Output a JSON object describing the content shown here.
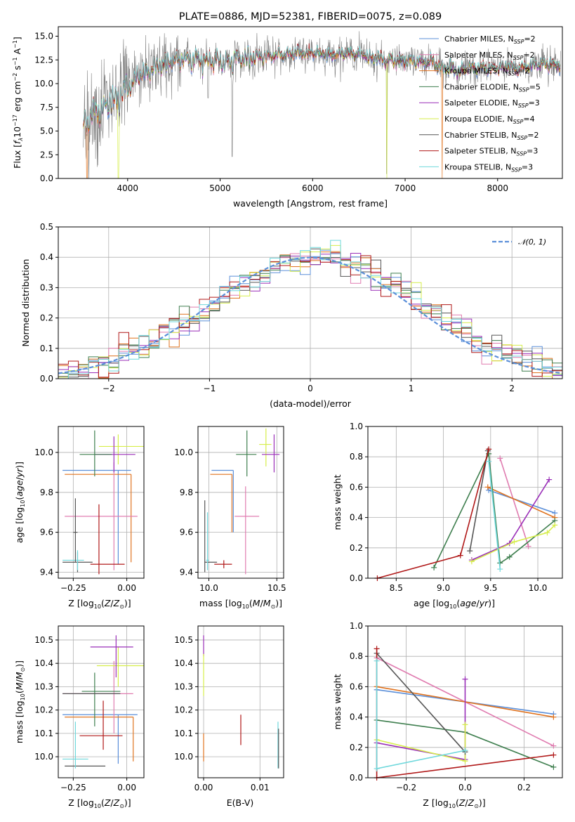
{
  "colors": {
    "Chabrier MILES": "#5b8fd9",
    "Salpeter MILES": "#e07cb0",
    "Kroupa MILES": "#e0731f",
    "Chabrier ELODIE": "#3f7f4f",
    "Salpeter ELODIE": "#9a2fb8",
    "Kroupa ELODIE": "#d6ee4a",
    "Chabrier STELIB": "#555555",
    "Salpeter STELIB": "#b01818",
    "Kroupa STELIB": "#6fd8dc",
    "data": "#808080",
    "normal": "#5b8fd9"
  },
  "chart_data": [
    {
      "id": "spectrum",
      "type": "line",
      "title": "PLATE=0886, MJD=52381, FIBERID=0075, z=0.089",
      "xlabel": "wavelength [Angstrom, rest frame]",
      "ylabel": "Flux [fλ10⁻¹⁷ erg cm⁻² s⁻¹ A⁻¹]",
      "xlim": [
        3250,
        8700
      ],
      "ylim": [
        0,
        16
      ],
      "xticks": [
        4000,
        5000,
        6000,
        7000,
        8000
      ],
      "yticks": [
        0.0,
        2.5,
        5.0,
        7.5,
        10.0,
        12.5,
        15.0
      ],
      "grid": false,
      "legend": "right",
      "continuum": {
        "x": [
          3520,
          3600,
          3700,
          3800,
          3900,
          4000,
          4100,
          4200,
          4300,
          4400,
          4500,
          4600,
          4700,
          4800,
          4900,
          5000,
          5100,
          5200,
          5300,
          5400,
          5500,
          5600,
          5700,
          5800,
          5900,
          6000,
          6100,
          6200,
          6300,
          6400,
          6500,
          6600,
          6700,
          6800,
          6900,
          7000,
          7100,
          7200,
          7300,
          7400,
          7500,
          7600,
          7700,
          7800,
          7900,
          8000,
          8100,
          8200,
          8300,
          8400,
          8500,
          8600,
          8700
        ],
        "y": [
          5.8,
          6.6,
          7.3,
          8.0,
          8.6,
          9.4,
          10.6,
          11.2,
          11.8,
          12.0,
          12.2,
          12.6,
          12.7,
          12.4,
          12.3,
          12.4,
          12.2,
          12.6,
          12.8,
          12.8,
          12.9,
          13.0,
          13.1,
          13.1,
          13.2,
          13.2,
          13.2,
          13.0,
          13.1,
          13.1,
          13.1,
          12.8,
          12.6,
          12.5,
          12.5,
          12.4,
          12.4,
          12.3,
          12.2,
          11.6,
          11.5,
          11.3,
          11.7,
          11.6,
          11.6,
          11.6,
          11.8,
          11.5,
          11.7,
          12.0,
          12.1,
          11.9,
          11.9
        ]
      },
      "series": [
        {
          "name": "Chabrier MILES, N_SSP=2",
          "label": "Chabrier MILES, N",
          "sub": "SSP",
          "n": "=2"
        },
        {
          "name": "Salpeter MILES, N_SSP=2",
          "label": "Salpeter MILES, N",
          "sub": "SSP",
          "n": "=2"
        },
        {
          "name": "Kroupa MILES, N_SSP=2",
          "label": "Kroupa MILES, N",
          "sub": "SSP",
          "n": "=2"
        },
        {
          "name": "Chabrier ELODIE, N_SSP=5",
          "label": "Chabrier ELODIE, N",
          "sub": "SSP",
          "n": "=5"
        },
        {
          "name": "Salpeter ELODIE, N_SSP=3",
          "label": "Salpeter ELODIE, N",
          "sub": "SSP",
          "n": "=3"
        },
        {
          "name": "Kroupa ELODIE, N_SSP=4",
          "label": "Kroupa ELODIE, N",
          "sub": "SSP",
          "n": "=4"
        },
        {
          "name": "Chabrier STELIB, N_SSP=2",
          "label": "Chabrier STELIB, N",
          "sub": "SSP",
          "n": "=2"
        },
        {
          "name": "Salpeter STELIB, N_SSP=3",
          "label": "Salpeter STELIB, N",
          "sub": "SSP",
          "n": "=3"
        },
        {
          "name": "Kroupa STELIB, N_SSP=3",
          "label": "Kroupa STELIB, N",
          "sub": "SSP",
          "n": "=3"
        }
      ]
    },
    {
      "id": "residuals",
      "type": "histogram",
      "xlabel": "(data-model)/error",
      "ylabel": "Normed distribution",
      "xlim": [
        -2.5,
        2.5
      ],
      "ylim": [
        0,
        0.5
      ],
      "xticks": [
        -2,
        -1,
        0,
        1,
        2
      ],
      "xticklabels": [
        "−2",
        "−1",
        "0",
        "1",
        "2"
      ],
      "yticks": [
        0.0,
        0.1,
        0.2,
        0.3,
        0.4,
        0.5
      ],
      "grid": true,
      "legend": "top-right",
      "legend_label": "𝒩(0, 1)",
      "bin_width": 0.1
    },
    {
      "id": "age-Z",
      "type": "errorbar",
      "xlabel": "Z [log₁₀(Z/Z⊙)]",
      "ylabel": "age  [log₁₀(age/yr)]",
      "xlim": [
        -0.32,
        0.08
      ],
      "ylim": [
        9.37,
        10.13
      ],
      "xticks": [
        -0.25,
        0.0
      ],
      "xticklabels": [
        "−0.25",
        "0.00"
      ],
      "yticks": [
        9.4,
        9.6,
        9.8,
        10.0
      ],
      "grid": true,
      "points": [
        {
          "series": "Chabrier MILES",
          "x": -0.04,
          "xlo": -0.3,
          "xhi": 0.02,
          "y": 9.91,
          "ylo": 9.44,
          "yhi": 9.91
        },
        {
          "series": "Kroupa MILES",
          "x": 0.02,
          "xlo": -0.29,
          "xhi": 0.02,
          "y": 9.89,
          "ylo": 9.45,
          "yhi": 9.89
        },
        {
          "series": "Salpeter MILES",
          "x": -0.06,
          "xlo": -0.29,
          "xhi": 0.05,
          "y": 9.68,
          "ylo": 9.41,
          "yhi": 9.95
        },
        {
          "series": "Kroupa ELODIE",
          "x": -0.04,
          "xlo": -0.13,
          "xhi": 0.08,
          "y": 10.03,
          "ylo": 9.94,
          "yhi": 10.09
        },
        {
          "series": "Salpeter ELODIE",
          "x": -0.06,
          "xlo": -0.15,
          "xhi": 0.04,
          "y": 9.99,
          "ylo": 9.9,
          "yhi": 10.08
        },
        {
          "series": "Chabrier ELODIE",
          "x": -0.15,
          "xlo": -0.22,
          "xhi": -0.07,
          "y": 9.99,
          "ylo": 9.88,
          "yhi": 10.11
        },
        {
          "series": "Chabrier STELIB",
          "x": -0.23,
          "xlo": -0.3,
          "xhi": -0.16,
          "y": 9.45,
          "ylo": 9.4,
          "yhi": 9.5
        },
        {
          "series": "Kroupa STELIB",
          "x": -0.23,
          "xlo": -0.3,
          "xhi": -0.2,
          "y": 9.46,
          "ylo": 9.41,
          "yhi": 9.51
        },
        {
          "series": "Chabrier STELIB",
          "x": -0.24,
          "xlo": -0.25,
          "xhi": -0.23,
          "y": 9.6,
          "ylo": 9.45,
          "yhi": 9.77
        },
        {
          "series": "Salpeter STELIB",
          "x": -0.13,
          "xlo": -0.17,
          "xhi": -0.01,
          "y": 9.44,
          "ylo": 9.39,
          "yhi": 9.74
        }
      ]
    },
    {
      "id": "age-mass",
      "type": "errorbar",
      "xlabel": "mass [log₁₀(M/M⊙)]",
      "ylabel": "",
      "xlim": [
        9.92,
        10.55
      ],
      "ylim": [
        9.37,
        10.13
      ],
      "xticks": [
        10.0,
        10.5
      ],
      "xticklabels": [
        "10.0",
        "10.5"
      ],
      "yticks": [
        9.4,
        9.6,
        9.8,
        10.0
      ],
      "grid": true,
      "points": [
        {
          "series": "Chabrier MILES",
          "x": 10.18,
          "xlo": 10.02,
          "xhi": 10.18,
          "y": 9.91,
          "ylo": 9.6,
          "yhi": 9.91
        },
        {
          "series": "Kroupa MILES",
          "x": 10.17,
          "xlo": 10.01,
          "xhi": 10.17,
          "y": 9.89,
          "ylo": 9.6,
          "yhi": 9.89
        },
        {
          "series": "Salpeter MILES",
          "x": 10.27,
          "xlo": 10.19,
          "xhi": 10.37,
          "y": 9.68,
          "ylo": 9.39,
          "yhi": 9.83
        },
        {
          "series": "Kroupa ELODIE",
          "x": 10.42,
          "xlo": 10.37,
          "xhi": 10.46,
          "y": 10.04,
          "ylo": 9.93,
          "yhi": 10.12
        },
        {
          "series": "Salpeter ELODIE",
          "x": 10.48,
          "xlo": 10.39,
          "xhi": 10.52,
          "y": 9.99,
          "ylo": 9.9,
          "yhi": 10.09
        },
        {
          "series": "Chabrier ELODIE",
          "x": 10.28,
          "xlo": 10.2,
          "xhi": 10.35,
          "y": 9.99,
          "ylo": 9.88,
          "yhi": 10.11
        },
        {
          "series": "Chabrier STELIB",
          "x": 9.97,
          "xlo": 9.97,
          "xhi": 10.06,
          "y": 9.45,
          "ylo": 9.4,
          "yhi": 9.76
        },
        {
          "series": "Kroupa STELIB",
          "x": 9.99,
          "xlo": 9.98,
          "xhi": 10.0,
          "y": 9.46,
          "ylo": 9.41,
          "yhi": 9.7
        },
        {
          "series": "Salpeter STELIB",
          "x": 10.11,
          "xlo": 10.04,
          "xhi": 10.17,
          "y": 9.44,
          "ylo": 9.42,
          "yhi": 9.46
        }
      ]
    },
    {
      "id": "weight-age",
      "type": "line",
      "xlabel": "age  [log₁₀(age/yr)]",
      "ylabel": "mass weight",
      "xlim": [
        8.2,
        10.26
      ],
      "ylim": [
        0,
        1.0
      ],
      "xticks": [
        8.5,
        9.0,
        9.5,
        10.0
      ],
      "xticklabels": [
        "8.5",
        "9.0",
        "9.5",
        "10.0"
      ],
      "yticks": [
        0.0,
        0.2,
        0.4,
        0.6,
        0.8,
        1.0
      ],
      "grid": true,
      "series": [
        {
          "name": "Chabrier MILES",
          "x": [
            9.48,
            10.18
          ],
          "y": [
            0.58,
            0.43
          ]
        },
        {
          "name": "Salpeter MILES",
          "x": [
            9.6,
            9.9
          ],
          "y": [
            0.79,
            0.21
          ]
        },
        {
          "name": "Kroupa MILES",
          "x": [
            9.47,
            10.18
          ],
          "y": [
            0.6,
            0.4
          ]
        },
        {
          "name": "Chabrier ELODIE",
          "x": [
            8.9,
            9.48,
            9.6,
            9.7,
            10.18
          ],
          "y": [
            0.07,
            0.82,
            0.1,
            0.14,
            0.38
          ]
        },
        {
          "name": "Salpeter ELODIE",
          "x": [
            9.3,
            9.7,
            10.12
          ],
          "y": [
            0.12,
            0.23,
            0.65
          ]
        },
        {
          "name": "Kroupa ELODIE",
          "x": [
            9.3,
            9.75,
            10.1,
            10.18
          ],
          "y": [
            0.11,
            0.24,
            0.3,
            0.35
          ]
        },
        {
          "name": "Chabrier STELIB",
          "x": [
            9.28,
            9.47
          ],
          "y": [
            0.18,
            0.84
          ]
        },
        {
          "name": "Salpeter STELIB",
          "x": [
            8.3,
            9.18,
            9.48
          ],
          "y": [
            0.0,
            0.15,
            0.85
          ]
        },
        {
          "name": "Kroupa STELIB",
          "x": [
            9.48,
            9.6
          ],
          "y": [
            0.77,
            0.06
          ]
        }
      ]
    },
    {
      "id": "mass-Z",
      "type": "errorbar",
      "xlabel": "Z [log₁₀(Z/Z⊙)]",
      "ylabel": "mass [log₁₀(M/M⊙)]",
      "xlim": [
        -0.32,
        0.08
      ],
      "ylim": [
        9.91,
        10.56
      ],
      "xticks": [
        -0.25,
        0.0
      ],
      "xticklabels": [
        "−0.25",
        "0.00"
      ],
      "yticks": [
        10.0,
        10.1,
        10.2,
        10.3,
        10.4,
        10.5
      ],
      "grid": true,
      "points": [
        {
          "series": "Chabrier MILES",
          "x": -0.04,
          "xlo": -0.3,
          "xhi": 0.05,
          "y": 10.18,
          "ylo": 9.97,
          "yhi": 10.18
        },
        {
          "series": "Kroupa MILES",
          "x": 0.03,
          "xlo": -0.29,
          "xhi": 0.03,
          "y": 10.17,
          "ylo": 9.98,
          "yhi": 10.17
        },
        {
          "series": "Salpeter MILES",
          "x": -0.06,
          "xlo": -0.3,
          "xhi": 0.03,
          "y": 10.27,
          "ylo": 10.1,
          "yhi": 10.41
        },
        {
          "series": "Kroupa ELODIE",
          "x": -0.04,
          "xlo": -0.14,
          "xhi": 0.08,
          "y": 10.39,
          "ylo": 10.3,
          "yhi": 10.47
        },
        {
          "series": "Salpeter ELODIE",
          "x": -0.05,
          "xlo": -0.17,
          "xhi": 0.03,
          "y": 10.47,
          "ylo": 10.34,
          "yhi": 10.52
        },
        {
          "series": "Chabrier ELODIE",
          "x": -0.15,
          "xlo": -0.21,
          "xhi": -0.03,
          "y": 10.28,
          "ylo": 10.13,
          "yhi": 10.36
        },
        {
          "series": "Chabrier STELIB",
          "x": -0.2,
          "xlo": -0.29,
          "xhi": -0.1,
          "y": 9.96,
          "ylo": 9.96,
          "yhi": 9.96
        },
        {
          "series": "Chabrier STELIB",
          "x": -0.2,
          "xlo": -0.3,
          "xhi": -0.03,
          "y": 10.27,
          "ylo": 10.27,
          "yhi": 10.27
        },
        {
          "series": "Kroupa STELIB",
          "x": -0.24,
          "xlo": -0.3,
          "xhi": -0.18,
          "y": 9.99,
          "ylo": 9.95,
          "yhi": 10.15
        },
        {
          "series": "Salpeter STELIB",
          "x": -0.11,
          "xlo": -0.22,
          "xhi": -0.02,
          "y": 10.09,
          "ylo": 10.03,
          "yhi": 10.24
        }
      ]
    },
    {
      "id": "mass-EBV",
      "type": "errorbar",
      "xlabel": "E(B-V)",
      "ylabel": "",
      "xlim": [
        -0.001,
        0.0142
      ],
      "ylim": [
        9.91,
        10.56
      ],
      "xticks": [
        0.0,
        0.01
      ],
      "xticklabels": [
        "0.00",
        "0.01"
      ],
      "yticks": [
        10.0,
        10.1,
        10.2,
        10.3,
        10.4,
        10.5
      ],
      "grid": true,
      "points": [
        {
          "series": "Salpeter ELODIE",
          "x": 0.0,
          "xlo": 0.0,
          "xhi": 0.0,
          "y": 10.47,
          "ylo": 10.43,
          "yhi": 10.52
        },
        {
          "series": "Kroupa ELODIE",
          "x": 0.0,
          "xlo": 0.0,
          "xhi": 0.0,
          "y": 10.35,
          "ylo": 10.26,
          "yhi": 10.44
        },
        {
          "series": "Kroupa MILES",
          "x": 0.0,
          "xlo": 0.0,
          "xhi": 0.0,
          "y": 10.05,
          "ylo": 9.98,
          "yhi": 10.1
        },
        {
          "series": "Salpeter STELIB",
          "x": 0.0066,
          "xlo": 0.0066,
          "xhi": 0.0066,
          "y": 10.11,
          "ylo": 10.05,
          "yhi": 10.18
        },
        {
          "series": "Kroupa STELIB",
          "x": 0.0132,
          "xlo": 0.0132,
          "xhi": 0.0132,
          "y": 10.05,
          "ylo": 9.95,
          "yhi": 10.15
        },
        {
          "series": "Chabrier STELIB",
          "x": 0.0133,
          "xlo": 0.0133,
          "xhi": 0.0133,
          "y": 10.04,
          "ylo": 9.95,
          "yhi": 10.12
        }
      ]
    },
    {
      "id": "weight-Z",
      "type": "line",
      "xlabel": "Z [log₁₀(Z/Z⊙)]",
      "ylabel": "mass weight",
      "xlim": [
        -0.33,
        0.33
      ],
      "ylim": [
        0,
        1.0
      ],
      "xticks": [
        -0.2,
        0.0,
        0.2
      ],
      "xticklabels": [
        "−0.2",
        "0.0",
        "0.2"
      ],
      "yticks": [
        0.0,
        0.2,
        0.4,
        0.6,
        0.8,
        1.0
      ],
      "grid": true,
      "series": [
        {
          "name": "Chabrier MILES",
          "x": [
            -0.3,
            0.3
          ],
          "y": [
            0.58,
            0.42
          ]
        },
        {
          "name": "Salpeter MILES",
          "x": [
            -0.3,
            0.3
          ],
          "y": [
            0.79,
            0.21
          ]
        },
        {
          "name": "Kroupa MILES",
          "x": [
            -0.3,
            0.3
          ],
          "y": [
            0.6,
            0.4
          ]
        },
        {
          "name": "Chabrier ELODIE",
          "x": [
            -0.3,
            0.0,
            0.3
          ],
          "y": [
            0.38,
            0.3,
            0.07
          ]
        },
        {
          "name": "Salpeter ELODIE",
          "x": [
            -0.3,
            0.0,
            0.0
          ],
          "y": [
            0.23,
            0.12,
            0.65
          ]
        },
        {
          "name": "Kroupa ELODIE",
          "x": [
            -0.3,
            0.0,
            0.0
          ],
          "y": [
            0.25,
            0.11,
            0.35
          ]
        },
        {
          "name": "Chabrier STELIB",
          "x": [
            -0.3,
            0.0
          ],
          "y": [
            0.82,
            0.17
          ]
        },
        {
          "name": "Salpeter STELIB",
          "x": [
            -0.3,
            -0.3,
            0.3
          ],
          "y": [
            0.85,
            0.0,
            0.15
          ]
        },
        {
          "name": "Kroupa STELIB",
          "x": [
            -0.3,
            -0.3,
            0.0
          ],
          "y": [
            0.77,
            0.06,
            0.18
          ]
        }
      ]
    }
  ]
}
